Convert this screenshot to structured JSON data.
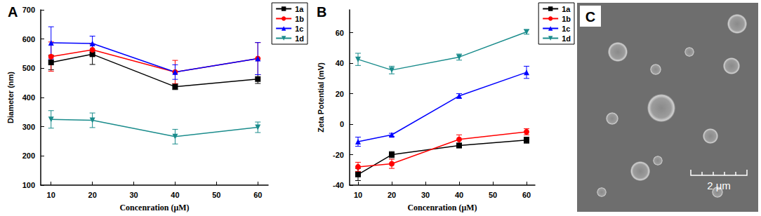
{
  "chart_data": [
    {
      "type": "line",
      "title": "A",
      "x_label": "Concenration (μM)",
      "y_label": "Diameter (nm)",
      "x": [
        10,
        20,
        40,
        60
      ],
      "xlim": [
        7.5,
        62.5
      ],
      "xticks": [
        10,
        20,
        30,
        40,
        50,
        60
      ],
      "ylim": [
        100,
        700
      ],
      "yticks": [
        100,
        200,
        300,
        400,
        500,
        600,
        700
      ],
      "grid": false,
      "legend": "right",
      "series": [
        {
          "name": "1a",
          "color": "#000000",
          "marker": "square",
          "values": [
            520,
            548,
            437,
            463
          ],
          "errors": [
            25,
            35,
            10,
            15
          ]
        },
        {
          "name": "1b",
          "color": "#ff0000",
          "marker": "circle",
          "values": [
            540,
            563,
            487,
            533
          ],
          "errors": [
            50,
            20,
            40,
            55
          ]
        },
        {
          "name": "1c",
          "color": "#0000ff",
          "marker": "triangle",
          "values": [
            587,
            585,
            487,
            533
          ],
          "errors": [
            55,
            25,
            25,
            55
          ]
        },
        {
          "name": "1d",
          "color": "#1a8c8c",
          "marker": "triangle_down",
          "values": [
            325,
            322,
            266,
            298
          ],
          "errors": [
            30,
            25,
            25,
            18
          ]
        }
      ]
    },
    {
      "type": "line",
      "title": "B",
      "x_label": "Concenration (μM)",
      "y_label": "Zeta Potential (mV)",
      "x": [
        10,
        20,
        40,
        60
      ],
      "xlim": [
        7.5,
        62.5
      ],
      "xticks": [
        10,
        20,
        30,
        40,
        50,
        60
      ],
      "ylim": [
        -40,
        75
      ],
      "yticks": [
        -40,
        -20,
        0,
        20,
        40,
        60
      ],
      "grid": false,
      "legend": "right",
      "series": [
        {
          "name": "1a",
          "color": "#000000",
          "marker": "square",
          "values": [
            -33,
            -20,
            -14,
            -10.5
          ],
          "errors": [
            4,
            2,
            1.5,
            2
          ]
        },
        {
          "name": "1b",
          "color": "#ff0000",
          "marker": "circle",
          "values": [
            -28,
            -26,
            -10,
            -5
          ],
          "errors": [
            3,
            3,
            3,
            2
          ]
        },
        {
          "name": "1c",
          "color": "#0000ff",
          "marker": "triangle",
          "values": [
            -11.5,
            -7,
            18.5,
            34
          ],
          "errors": [
            3,
            1,
            1.5,
            4
          ]
        },
        {
          "name": "1d",
          "color": "#1a8c8c",
          "marker": "triangle_down",
          "values": [
            42.5,
            35.5,
            44,
            60.5
          ],
          "errors": [
            4,
            2.5,
            2,
            1.5
          ]
        }
      ]
    }
  ],
  "panel_c": {
    "label": "C",
    "scale_bar": "2 μm"
  }
}
